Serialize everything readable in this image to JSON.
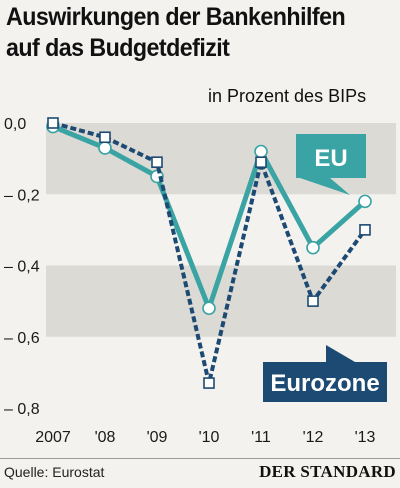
{
  "title_line1": "Auswirkungen der Bankenhilfen",
  "title_line2": "auf das Budgetdefizit",
  "subtitle": "in Prozent des BIPs",
  "source": "Quelle: Eurostat",
  "brand": "DER STANDARD",
  "colors": {
    "eu": "#3aa3a3",
    "eurozone": "#1d4a72",
    "band": "#dcdad5",
    "background": "#f3f2ee"
  },
  "chart_data": {
    "type": "line",
    "x": [
      "2007",
      "'08",
      "'09",
      "'10",
      "'11",
      "'12",
      "'13"
    ],
    "ylim": [
      -0.8,
      0.0
    ],
    "yticks": [
      "0,0",
      "– 0,2",
      "– 0,4",
      "– 0,6",
      "– 0,8"
    ],
    "ytick_values": [
      0.0,
      -0.2,
      -0.4,
      -0.6,
      -0.8
    ],
    "grid": false,
    "series": [
      {
        "name": "EU",
        "values": [
          -0.01,
          -0.07,
          -0.15,
          -0.52,
          -0.08,
          -0.35,
          -0.22
        ],
        "marker": "circle",
        "style": "solid"
      },
      {
        "name": "Eurozone",
        "values": [
          0.0,
          -0.04,
          -0.11,
          -0.73,
          -0.11,
          -0.5,
          -0.3
        ],
        "marker": "square",
        "style": "dashed"
      }
    ]
  }
}
